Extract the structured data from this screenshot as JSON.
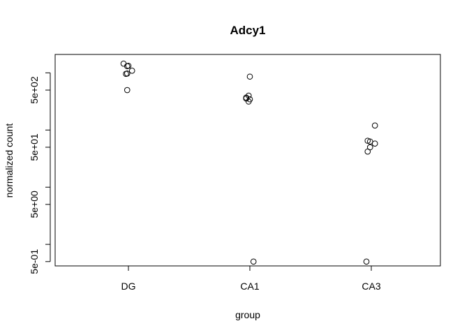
{
  "chart_data": {
    "type": "scatter",
    "title": "Adcy1",
    "xlabel": "group",
    "ylabel": "normalized count",
    "categories": [
      "DG",
      "CA1",
      "CA3"
    ],
    "y_scale": "log10",
    "ylim": [
      0.42,
      2100
    ],
    "y_tick_values": [
      0.5,
      1,
      5,
      10,
      50,
      100,
      500,
      1000
    ],
    "y_tick_labels": [
      {
        "value": 0.5,
        "label": "5e-01"
      },
      {
        "value": 5,
        "label": "5e+00"
      },
      {
        "value": 50,
        "label": "5e+01"
      },
      {
        "value": 500,
        "label": "5e+02"
      }
    ],
    "series": [
      {
        "points": [
          {
            "category": "DG",
            "x": 0.96,
            "y": 1450
          },
          {
            "category": "DG",
            "x": 0.99,
            "y": 1310
          },
          {
            "category": "DG",
            "x": 1.0,
            "y": 1330
          },
          {
            "category": "DG",
            "x": 1.03,
            "y": 1090
          },
          {
            "category": "DG",
            "x": 0.98,
            "y": 960
          },
          {
            "category": "DG",
            "x": 0.99,
            "y": 975
          },
          {
            "category": "DG",
            "x": 0.99,
            "y": 500
          },
          {
            "category": "CA1",
            "x": 2.0,
            "y": 860
          },
          {
            "category": "CA1",
            "x": 1.99,
            "y": 400
          },
          {
            "category": "CA1",
            "x": 1.97,
            "y": 370
          },
          {
            "category": "CA1",
            "x": 1.97,
            "y": 355
          },
          {
            "category": "CA1",
            "x": 2.0,
            "y": 345
          },
          {
            "category": "CA1",
            "x": 1.99,
            "y": 315
          },
          {
            "category": "CA1",
            "x": 2.03,
            "y": 0.5
          },
          {
            "category": "CA3",
            "x": 3.03,
            "y": 120
          },
          {
            "category": "CA3",
            "x": 2.97,
            "y": 65
          },
          {
            "category": "CA3",
            "x": 2.99,
            "y": 63
          },
          {
            "category": "CA3",
            "x": 3.03,
            "y": 58
          },
          {
            "category": "CA3",
            "x": 2.99,
            "y": 50
          },
          {
            "category": "CA3",
            "x": 2.97,
            "y": 42
          },
          {
            "category": "CA3",
            "x": 2.96,
            "y": 0.5
          }
        ]
      }
    ]
  }
}
